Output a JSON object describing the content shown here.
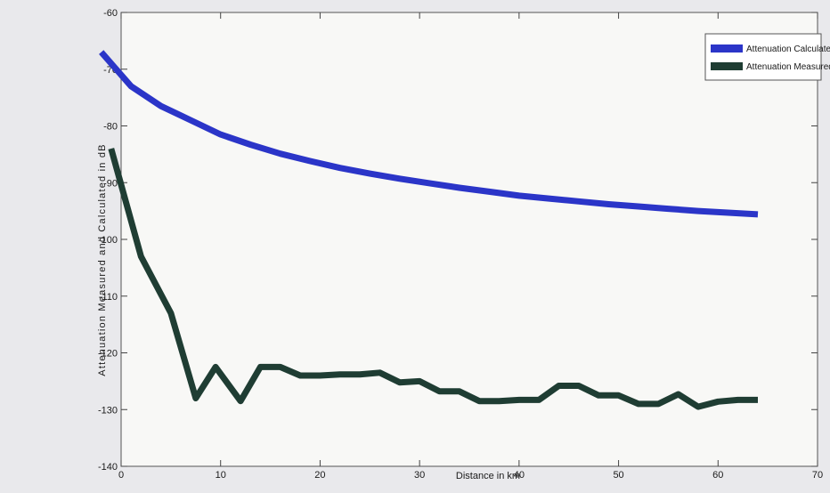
{
  "chart_data": {
    "type": "line",
    "title": "",
    "xlabel": "Distance in km",
    "ylabel": "Attenuation Measured and Calculated in dB",
    "xlim": [
      0,
      70
    ],
    "ylim": [
      -140,
      -60
    ],
    "xticks": [
      0,
      10,
      20,
      30,
      40,
      50,
      60,
      70
    ],
    "yticks": [
      -140,
      -130,
      -120,
      -110,
      -100,
      -90,
      -80,
      -70,
      -60
    ],
    "grid": false,
    "legend_position": "top-right",
    "series": [
      {
        "name": "Attenuation Calculated",
        "color": "#2b35c8",
        "x": [
          -2,
          1,
          4,
          7,
          10,
          13,
          16,
          19,
          22,
          25,
          28,
          31,
          34,
          37,
          40,
          43,
          46,
          49,
          52,
          55,
          58,
          61,
          64
        ],
        "y": [
          -67,
          -73,
          -76.5,
          -79,
          -81.5,
          -83.3,
          -84.9,
          -86.2,
          -87.4,
          -88.4,
          -89.3,
          -90.1,
          -90.9,
          -91.6,
          -92.3,
          -92.8,
          -93.3,
          -93.8,
          -94.2,
          -94.6,
          -95,
          -95.3,
          -95.6
        ]
      },
      {
        "name": "Attenuation Measured",
        "color": "#1f3d33",
        "x": [
          -1,
          2,
          5,
          7.5,
          9.5,
          12,
          14,
          16,
          18,
          20,
          22,
          24,
          26,
          28,
          30,
          32,
          34,
          36,
          38,
          40,
          42,
          44,
          46,
          48,
          50,
          52,
          54,
          56,
          58,
          60,
          62,
          64
        ],
        "y": [
          -84,
          -103,
          -113,
          -128,
          -122.5,
          -128.5,
          -122.5,
          -122.5,
          -124,
          -124,
          -123.8,
          -123.8,
          -123.5,
          -125.2,
          -125,
          -126.8,
          -126.8,
          -128.5,
          -128.5,
          -128.3,
          -128.3,
          -125.8,
          -125.8,
          -127.5,
          -127.5,
          -129,
          -129,
          -127.3,
          -129.5,
          -128.6,
          -128.3,
          -128.3
        ]
      }
    ]
  }
}
